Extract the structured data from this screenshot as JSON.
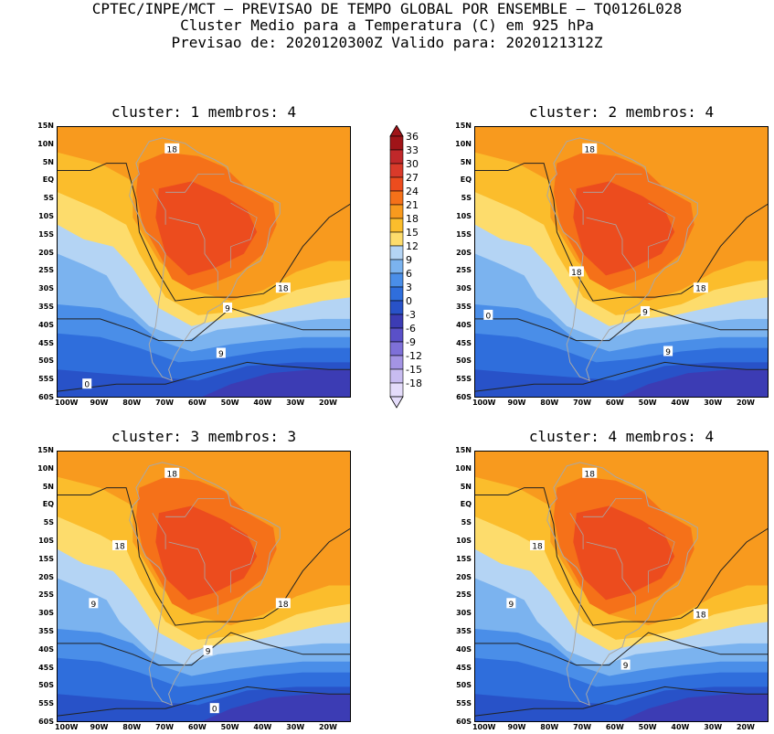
{
  "header": {
    "line1": "CPTEC/INPE/MCT — PREVISAO DE TEMPO GLOBAL POR ENSEMBLE — TQ0126L028",
    "line2": "Cluster Medio para a Temperatura (C) em 925 hPa",
    "line3": "Previsao de: 2020120300Z   Valido para: 2020121312Z"
  },
  "panels": [
    {
      "title": "cluster: 1  membros: 4",
      "contours": [
        "18",
        "18",
        "9",
        "9",
        "0"
      ]
    },
    {
      "title": "cluster: 2  membros: 4",
      "contours": [
        "18",
        "18",
        "18",
        "9",
        "9",
        "0"
      ]
    },
    {
      "title": "cluster: 3  membros: 3",
      "contours": [
        "18",
        "18",
        "18",
        "9",
        "9",
        "0"
      ]
    },
    {
      "title": "cluster: 4  membros: 4",
      "contours": [
        "18",
        "18",
        "18",
        "9",
        "9"
      ]
    }
  ],
  "lat_ticks": [
    "15N",
    "10N",
    "5N",
    "EQ",
    "5S",
    "10S",
    "15S",
    "20S",
    "25S",
    "30S",
    "35S",
    "40S",
    "45S",
    "50S",
    "55S",
    "60S"
  ],
  "lon_ticks": [
    "100W",
    "90W",
    "80W",
    "70W",
    "60W",
    "50W",
    "40W",
    "30W",
    "20W"
  ],
  "colorbar": {
    "labels": [
      "36",
      "33",
      "30",
      "27",
      "24",
      "21",
      "18",
      "15",
      "12",
      "9",
      "6",
      "3",
      "0",
      "-3",
      "-6",
      "-9",
      "-12",
      "-15",
      "-18"
    ],
    "colors": [
      "#a01418",
      "#c0282a",
      "#d93a2a",
      "#ec4c1e",
      "#f57119",
      "#f89a1e",
      "#fbbd2c",
      "#fddc6c",
      "#b4d4f4",
      "#7bb3ef",
      "#4a8ee8",
      "#2f6edc",
      "#2852c8",
      "#3c3cb4",
      "#5a50c8",
      "#7e70d8",
      "#a494e4",
      "#c8bcf0",
      "#e4dcfa"
    ]
  },
  "colors": {
    "hot": "#ec4c1e",
    "warm": "#f57119",
    "orange": "#f89a1e",
    "gold": "#fbbd2c",
    "yellow": "#fddc6c",
    "lightblue": "#b4d4f4",
    "midblue": "#7bb3ef",
    "blue": "#4a8ee8",
    "deepblue": "#2f6edc",
    "navy": "#2852c8",
    "purple": "#3c3cb4",
    "violet": "#5a50c8",
    "coast": "#a8a8a8"
  }
}
